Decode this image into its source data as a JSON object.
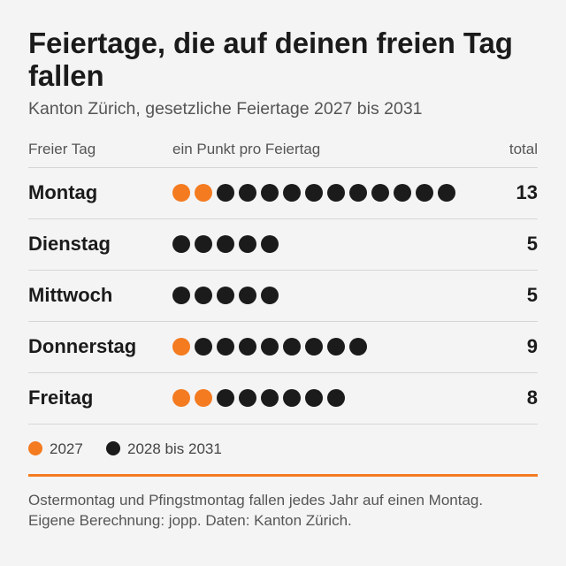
{
  "colors": {
    "accent": "#f47b20",
    "dark": "#1b1b1b",
    "series_2027": "#f47b20",
    "series_2028_2031": "#1b1b1b"
  },
  "chart_data": {
    "type": "table",
    "title": "Feiertage, die auf deinen freien Tag fallen",
    "subtitle": "Kanton Zürich, gesetzliche Feiertage 2027 bis 2031",
    "columns": {
      "day": "Freier Tag",
      "dots": "ein Punkt pro Feiertag",
      "total": "total"
    },
    "categories": [
      "Montag",
      "Dienstag",
      "Mittwoch",
      "Donnerstag",
      "Freitag"
    ],
    "series": [
      {
        "name": "2027",
        "color": "#f47b20",
        "values": [
          2,
          0,
          0,
          1,
          2
        ]
      },
      {
        "name": "2028 bis 2031",
        "color": "#1b1b1b",
        "values": [
          11,
          5,
          5,
          8,
          6
        ]
      }
    ],
    "totals": [
      "13",
      "5",
      "5",
      "9",
      "8"
    ],
    "legend_position": "bottom-left",
    "notes": [
      "Ostermontag und Pfingstmontag fallen jedes Jahr auf einen Montag.",
      "Eigene Berechnung: jopp. Daten: Kanton Zürich."
    ]
  }
}
